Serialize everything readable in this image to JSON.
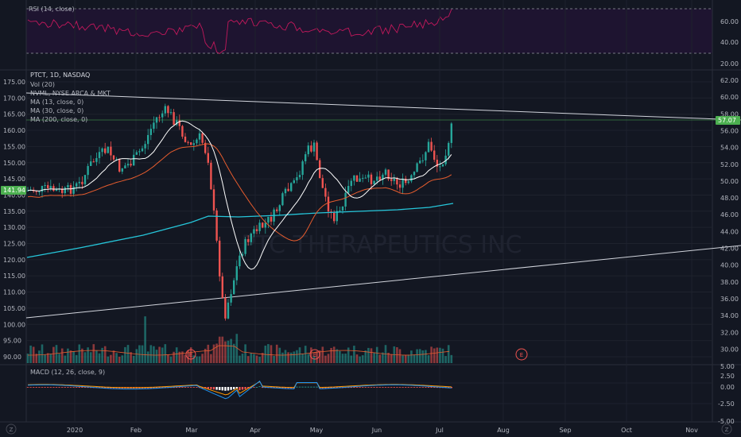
{
  "rsi": {
    "legend": "RSI (14, close)",
    "axis_labels": [
      "60.00",
      "40.00",
      "20.00"
    ],
    "color": "#c2185b",
    "band_color": "#2a1b3d",
    "bg_color": "#1e1430"
  },
  "price": {
    "legend_lines": [
      "PTCT, 1D, NASDAQ",
      "Vol (20)",
      "NVML, NYSE ARCA & MKT",
      "MA (13, close, 0)",
      "MA (30, close, 0)",
      "MA (200, close, 0)"
    ],
    "left_axis": [
      "175.00",
      "170.00",
      "165.00",
      "160.00",
      "155.00",
      "150.00",
      "145.00",
      "140.00",
      "135.00",
      "130.00",
      "125.00",
      "120.00",
      "115.00",
      "110.00",
      "105.00",
      "100.00",
      "95.00",
      "90.00"
    ],
    "right_axis": [
      "62.00",
      "60.00",
      "58.00",
      "56.00",
      "54.00",
      "52.00",
      "50.00",
      "48.00",
      "46.00",
      "44.00",
      "42.00",
      "40.00",
      "38.00",
      "36.00",
      "34.00",
      "32.00",
      "30.00"
    ],
    "left_badge": "141.94",
    "right_badge": "57.07",
    "watermark": "PTC THERAPEUTICS INC",
    "earnings_marker": "E",
    "up_color": "#26a69a",
    "down_color": "#ef5350",
    "ma13_color": "#ffffff",
    "ma30_color": "#e65c2e",
    "ma200_color": "#26c6da",
    "badge_color": "#4caf50"
  },
  "macd": {
    "legend": "MACD (12, 26, close, 9)",
    "axis_labels": [
      "5.00",
      "2.50",
      "0.00",
      "-2.50",
      "-5.00"
    ],
    "macd_color": "#2196f3",
    "signal_color": "#ff9800"
  },
  "time_axis": {
    "labels": [
      "2020",
      "Feb",
      "Mar",
      "Apr",
      "May",
      "Jun",
      "Jul",
      "Aug",
      "Sep",
      "Oct",
      "Nov"
    ]
  },
  "footer": {
    "left_icon": "Z",
    "right_icon": "Z"
  }
}
